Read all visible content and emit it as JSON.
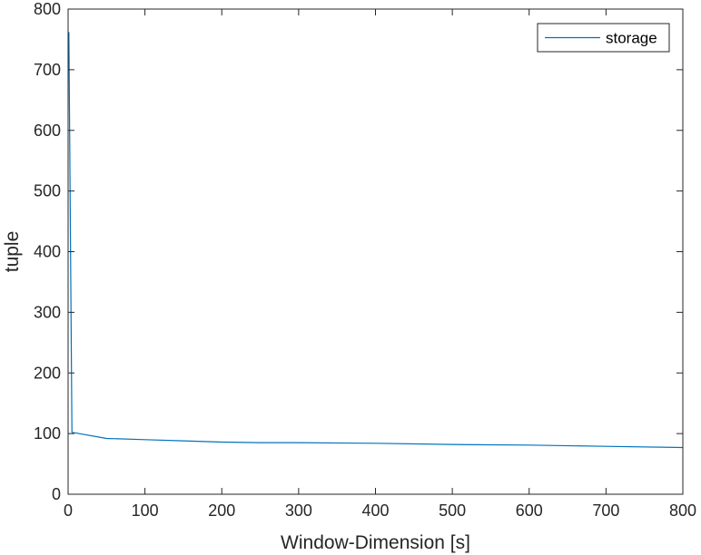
{
  "chart_data": {
    "type": "line",
    "title": "",
    "xlabel": "Window-Dimension [s]",
    "ylabel": "tuple",
    "xlim": [
      0,
      800
    ],
    "ylim": [
      0,
      800
    ],
    "xticks": [
      "0",
      "100",
      "200",
      "300",
      "400",
      "500",
      "600",
      "700",
      "800"
    ],
    "yticks": [
      "0",
      "100",
      "200",
      "300",
      "400",
      "500",
      "600",
      "700",
      "800"
    ],
    "grid": false,
    "legend_position": "top-right",
    "series": [
      {
        "name": "storage",
        "color": "#0072BD",
        "x": [
          1,
          5,
          10,
          50,
          100,
          150,
          200,
          250,
          300,
          400,
          500,
          600,
          700,
          800
        ],
        "y": [
          762,
          102,
          101,
          92,
          90,
          88,
          86,
          85,
          85,
          84,
          82,
          81,
          79,
          77
        ]
      }
    ]
  }
}
